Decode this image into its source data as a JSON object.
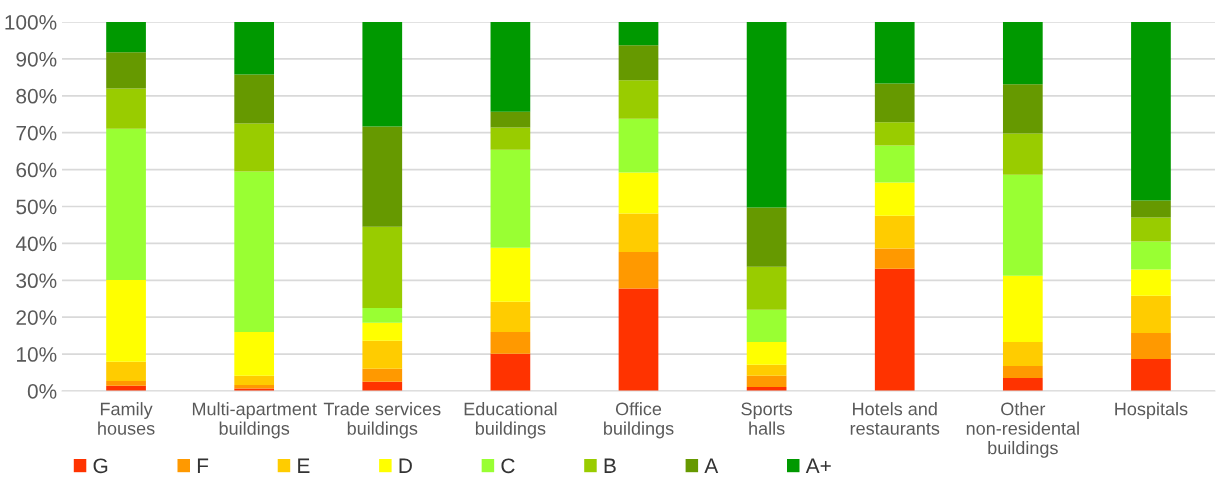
{
  "chart_data": {
    "type": "bar",
    "stacked": true,
    "categories": [
      "Family\nhouses",
      "Multi-apartment\nbuildings",
      "Trade services\nbuildings",
      "Educational\nbuildings",
      "Office\nbuildings",
      "Sports\nhalls",
      "Hotels and\nrestaurants",
      "Other\nnon-residental\nbuildings",
      "Hospitals"
    ],
    "series": [
      {
        "name": "G",
        "color": "#ff3300",
        "values": [
          1.4,
          0.7,
          2.5,
          10.1,
          27.8,
          1.1,
          33.1,
          3.5,
          8.7
        ]
      },
      {
        "name": "F",
        "color": "#ff9900",
        "values": [
          1.3,
          0.9,
          3.5,
          5.9,
          9.9,
          3.0,
          5.5,
          3.3,
          7.0
        ]
      },
      {
        "name": "E",
        "color": "#ffcc00",
        "values": [
          5.2,
          2.5,
          7.6,
          8.2,
          10.4,
          3.0,
          8.9,
          6.5,
          10.1
        ]
      },
      {
        "name": "D",
        "color": "#ffff00",
        "values": [
          22.2,
          11.9,
          4.9,
          14.6,
          11.1,
          6.2,
          9.0,
          17.9,
          7.1
        ]
      },
      {
        "name": "C",
        "color": "#99ff33",
        "values": [
          41.0,
          43.5,
          4.0,
          26.6,
          14.6,
          8.7,
          10.0,
          27.4,
          7.6
        ]
      },
      {
        "name": "B",
        "color": "#99cc00",
        "values": [
          10.9,
          13.0,
          22.0,
          6.0,
          10.4,
          11.7,
          6.3,
          11.2,
          6.5
        ]
      },
      {
        "name": "A",
        "color": "#669900",
        "values": [
          9.8,
          13.3,
          27.2,
          4.3,
          9.5,
          16.0,
          10.5,
          13.3,
          4.6
        ]
      },
      {
        "name": "A+",
        "color": "#009900",
        "values": [
          8.2,
          14.2,
          28.3,
          24.3,
          6.3,
          50.3,
          16.7,
          16.9,
          48.4
        ]
      }
    ],
    "ylim": [
      0,
      100
    ],
    "yticks": [
      {
        "value": 0,
        "label": "0%"
      },
      {
        "value": 10,
        "label": "10%"
      },
      {
        "value": 20,
        "label": "20%"
      },
      {
        "value": 30,
        "label": "30%"
      },
      {
        "value": 40,
        "label": "40%"
      },
      {
        "value": 50,
        "label": "50%"
      },
      {
        "value": 60,
        "label": "60%"
      },
      {
        "value": 70,
        "label": "70%"
      },
      {
        "value": 80,
        "label": "80%"
      },
      {
        "value": 90,
        "label": "90%"
      },
      {
        "value": 100,
        "label": "100%"
      }
    ],
    "grid": "y",
    "legend": "bottom"
  }
}
